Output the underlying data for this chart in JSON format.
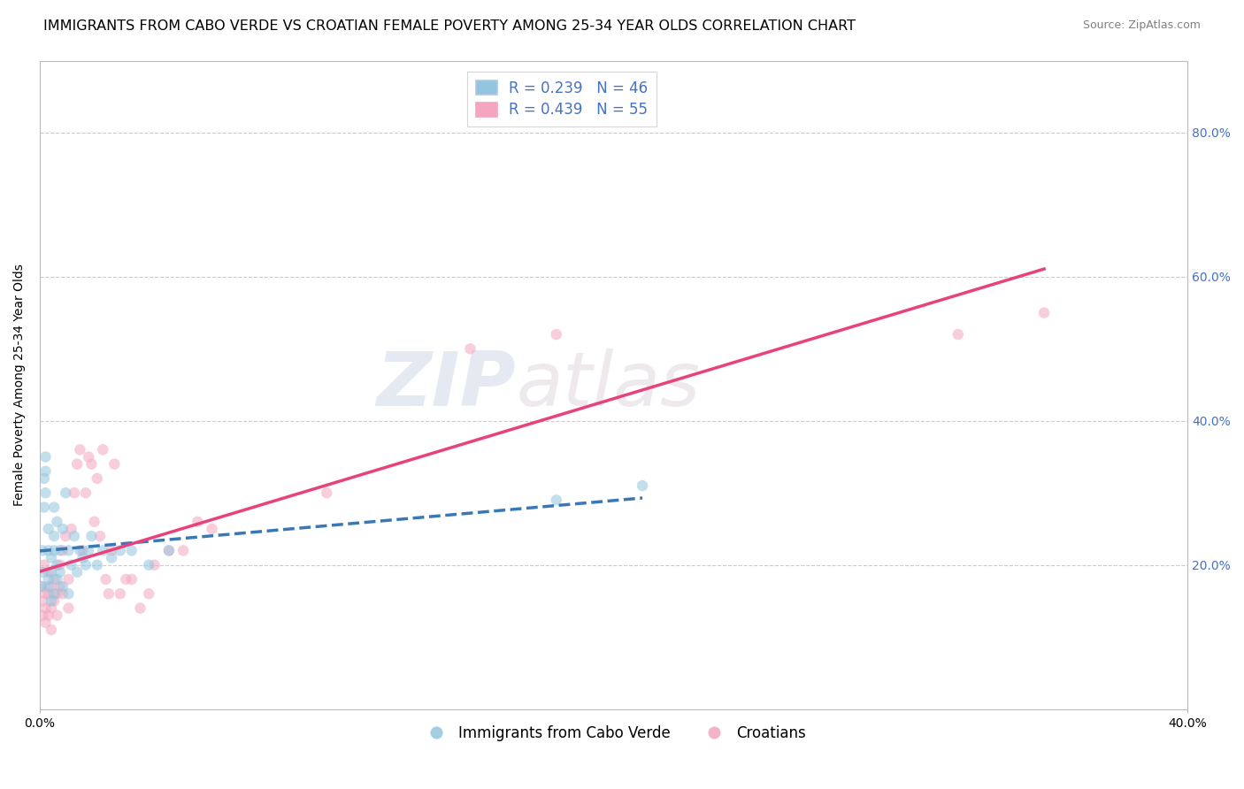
{
  "title": "IMMIGRANTS FROM CABO VERDE VS CROATIAN FEMALE POVERTY AMONG 25-34 YEAR OLDS CORRELATION CHART",
  "source": "Source: ZipAtlas.com",
  "ylabel": "Female Poverty Among 25-34 Year Olds",
  "xlim": [
    0.0,
    0.4
  ],
  "ylim": [
    0.0,
    0.9
  ],
  "x_ticks": [
    0.0,
    0.4
  ],
  "x_tick_labels": [
    "0.0%",
    "40.0%"
  ],
  "y_ticks": [
    0.0,
    0.2,
    0.4,
    0.6,
    0.8
  ],
  "y_tick_labels": [
    "",
    "",
    "",
    "",
    ""
  ],
  "right_y_ticks": [
    0.2,
    0.4,
    0.6,
    0.8
  ],
  "right_y_tick_labels": [
    "20.0%",
    "40.0%",
    "60.0%",
    "80.0%"
  ],
  "legend_entries": [
    {
      "label": "Immigrants from Cabo Verde",
      "color": "#92c5de",
      "R": 0.239,
      "N": 46
    },
    {
      "label": "Croatians",
      "color": "#f4a6c0",
      "R": 0.439,
      "N": 55
    }
  ],
  "watermark_zip": "ZIP",
  "watermark_atlas": "atlas",
  "cabo_verde_x": [
    0.0005,
    0.001,
    0.001,
    0.0015,
    0.0015,
    0.002,
    0.002,
    0.002,
    0.003,
    0.003,
    0.003,
    0.003,
    0.004,
    0.004,
    0.004,
    0.005,
    0.005,
    0.005,
    0.005,
    0.006,
    0.006,
    0.006,
    0.007,
    0.007,
    0.008,
    0.008,
    0.009,
    0.01,
    0.01,
    0.011,
    0.012,
    0.013,
    0.014,
    0.015,
    0.016,
    0.017,
    0.018,
    0.02,
    0.022,
    0.025,
    0.028,
    0.032,
    0.038,
    0.045,
    0.18,
    0.21
  ],
  "cabo_verde_y": [
    0.17,
    0.19,
    0.22,
    0.32,
    0.28,
    0.3,
    0.33,
    0.35,
    0.18,
    0.22,
    0.25,
    0.17,
    0.21,
    0.15,
    0.19,
    0.28,
    0.24,
    0.22,
    0.16,
    0.26,
    0.2,
    0.18,
    0.22,
    0.19,
    0.25,
    0.17,
    0.3,
    0.22,
    0.16,
    0.2,
    0.24,
    0.19,
    0.22,
    0.21,
    0.2,
    0.22,
    0.24,
    0.2,
    0.22,
    0.21,
    0.22,
    0.22,
    0.2,
    0.22,
    0.29,
    0.31
  ],
  "croatian_x": [
    0.0005,
    0.001,
    0.001,
    0.0015,
    0.002,
    0.002,
    0.002,
    0.003,
    0.003,
    0.003,
    0.004,
    0.004,
    0.004,
    0.005,
    0.005,
    0.006,
    0.006,
    0.007,
    0.007,
    0.008,
    0.008,
    0.009,
    0.01,
    0.01,
    0.011,
    0.012,
    0.013,
    0.014,
    0.015,
    0.016,
    0.017,
    0.018,
    0.019,
    0.02,
    0.021,
    0.022,
    0.023,
    0.024,
    0.025,
    0.026,
    0.028,
    0.03,
    0.032,
    0.035,
    0.038,
    0.04,
    0.045,
    0.05,
    0.055,
    0.06,
    0.1,
    0.15,
    0.18,
    0.32,
    0.35
  ],
  "croatian_y": [
    0.17,
    0.15,
    0.13,
    0.2,
    0.16,
    0.14,
    0.12,
    0.19,
    0.16,
    0.13,
    0.17,
    0.14,
    0.11,
    0.18,
    0.15,
    0.16,
    0.13,
    0.2,
    0.17,
    0.22,
    0.16,
    0.24,
    0.18,
    0.14,
    0.25,
    0.3,
    0.34,
    0.36,
    0.22,
    0.3,
    0.35,
    0.34,
    0.26,
    0.32,
    0.24,
    0.36,
    0.18,
    0.16,
    0.22,
    0.34,
    0.16,
    0.18,
    0.18,
    0.14,
    0.16,
    0.2,
    0.22,
    0.22,
    0.26,
    0.25,
    0.3,
    0.5,
    0.52,
    0.52,
    0.55
  ],
  "cabo_verde_color": "#92c5de",
  "croatian_color": "#f4a6c0",
  "cabo_verde_line_color": "#3a78b5",
  "croatian_line_color": "#e8427c",
  "grid_color": "#cccccc",
  "background_color": "#ffffff",
  "title_fontsize": 11.5,
  "source_fontsize": 9,
  "axis_label_fontsize": 10,
  "tick_fontsize": 10,
  "legend_fontsize": 12,
  "right_tick_color": "#4472c4",
  "marker_size": 9,
  "marker_alpha": 0.55
}
